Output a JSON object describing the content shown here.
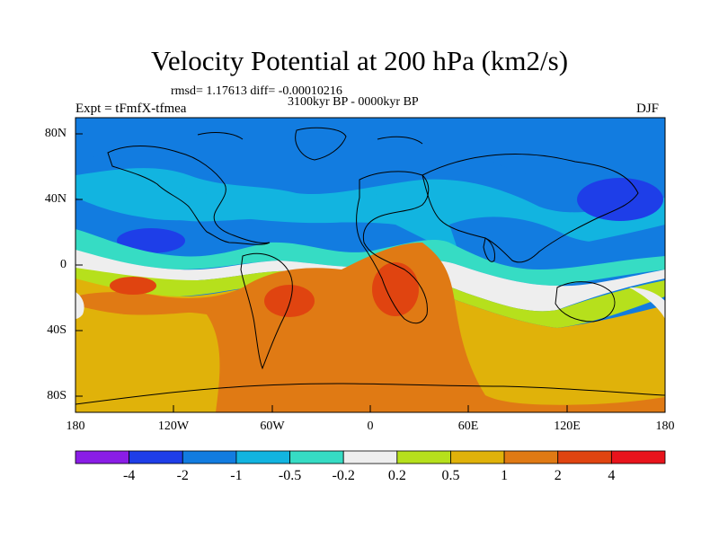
{
  "title": "Velocity Potential at 200 hPa (km2/s)",
  "stats": "rmsd= 1.17613 diff= -0.00010216",
  "period": "3100kyr BP - 0000kyr BP",
  "left_label": "Expt = tFmfX-tfmea",
  "right_label": "DJF",
  "y_ticks": [
    "80N",
    "40N",
    "0",
    "40S",
    "80S"
  ],
  "x_ticks": [
    "180",
    "120W",
    "60W",
    "0",
    "60E",
    "120E",
    "180"
  ],
  "colorbar": {
    "labels": [
      "-4",
      "-2",
      "-1",
      "-0.5",
      "-0.2",
      "0.2",
      "0.5",
      "1",
      "2",
      "4"
    ],
    "colors": [
      "#8a1de6",
      "#1e3ee8",
      "#127ce0",
      "#12b4e0",
      "#36dcc4",
      "#eeeeee",
      "#b6e01c",
      "#e0b20a",
      "#e07a14",
      "#e04410",
      "#e8141c"
    ]
  },
  "colors": {
    "background_land_field": "#e07a14",
    "ocean_blue": "#127ce0",
    "coast": "#000000"
  }
}
